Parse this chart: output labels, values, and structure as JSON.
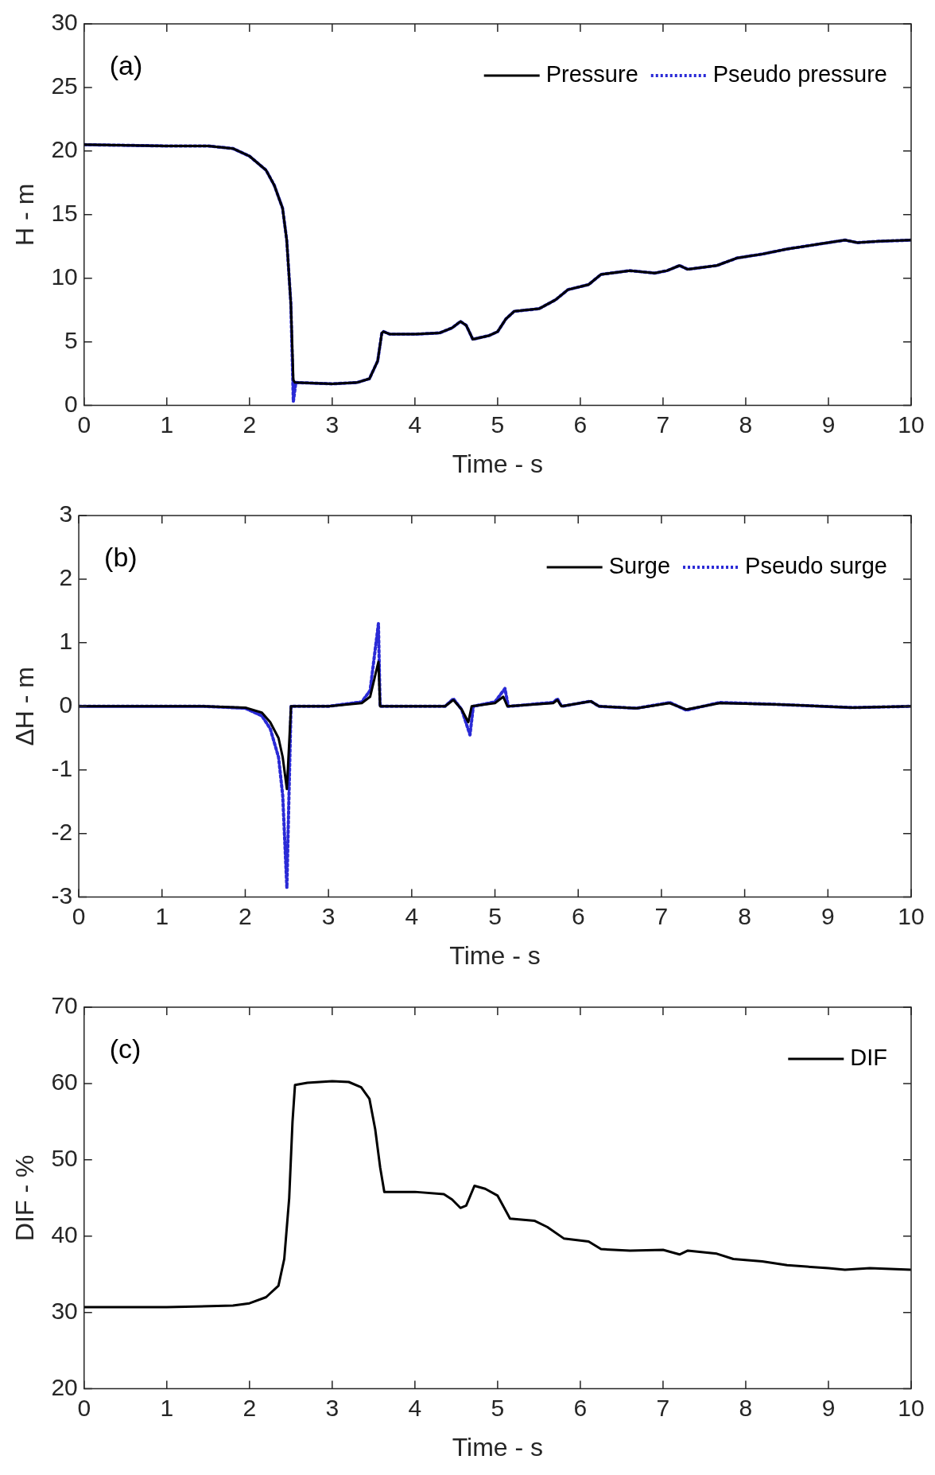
{
  "chart_data": [
    {
      "type": "line",
      "xlabel": "Time - s",
      "ylabel": "H - m",
      "annotations": [
        "(a)"
      ],
      "legend": "top right",
      "xlim": [
        0,
        10
      ],
      "xticks": [
        0,
        1,
        2,
        3,
        4,
        5,
        6,
        7,
        8,
        9,
        10
      ],
      "ylim": [
        0,
        30
      ],
      "yticks": [
        0,
        5,
        10,
        15,
        20,
        25,
        30
      ],
      "marker": "none",
      "series": [
        {
          "name": "Pressure",
          "color": "#000000",
          "line_style": "solid",
          "x": [
            0,
            1,
            1.5,
            1.8,
            2,
            2.2,
            2.3,
            2.4,
            2.45,
            2.5,
            2.53,
            2.55,
            3,
            3.3,
            3.45,
            3.55,
            3.6,
            3.62,
            3.7,
            4,
            4.3,
            4.45,
            4.55,
            4.62,
            4.7,
            4.9,
            5,
            5.1,
            5.2,
            5.5,
            5.7,
            5.85,
            6.1,
            6.25,
            6.6,
            6.9,
            7.05,
            7.2,
            7.3,
            7.65,
            7.9,
            8.2,
            8.5,
            8.9,
            9.2,
            9.35,
            9.6,
            10
          ],
          "values": [
            20.5,
            20.4,
            20.4,
            20.2,
            19.6,
            18.5,
            17.3,
            15.5,
            13,
            8,
            2,
            1.8,
            1.7,
            1.8,
            2.1,
            3.5,
            5.7,
            5.8,
            5.6,
            5.6,
            5.7,
            6.1,
            6.6,
            6.3,
            5.2,
            5.5,
            5.8,
            6.8,
            7.4,
            7.6,
            8.3,
            9.1,
            9.5,
            10.3,
            10.6,
            10.4,
            10.6,
            11,
            10.7,
            11,
            11.6,
            11.9,
            12.3,
            12.7,
            13,
            12.8,
            12.9,
            13
          ]
        },
        {
          "name": "Pseudo pressure",
          "color": "#2a2ad6",
          "line_style": "dotted",
          "x": [
            0,
            1,
            1.5,
            1.8,
            2,
            2.2,
            2.3,
            2.4,
            2.45,
            2.5,
            2.53,
            2.56,
            3,
            3.3,
            3.45,
            3.55,
            3.6,
            3.62,
            3.7,
            4,
            4.3,
            4.45,
            4.55,
            4.62,
            4.7,
            4.9,
            5,
            5.1,
            5.2,
            5.5,
            5.7,
            5.85,
            6.1,
            6.25,
            6.6,
            6.9,
            7.05,
            7.2,
            7.3,
            7.65,
            7.9,
            8.2,
            8.5,
            8.9,
            9.2,
            9.35,
            9.6,
            10
          ],
          "values": [
            20.5,
            20.4,
            20.4,
            20.2,
            19.6,
            18.5,
            17.3,
            15.5,
            13,
            8,
            0.3,
            1.8,
            1.7,
            1.8,
            2.1,
            3.5,
            5.7,
            5.8,
            5.6,
            5.6,
            5.7,
            6.1,
            6.6,
            6.3,
            5.2,
            5.5,
            5.8,
            6.8,
            7.4,
            7.6,
            8.3,
            9.1,
            9.5,
            10.3,
            10.6,
            10.4,
            10.6,
            11,
            10.7,
            11,
            11.6,
            11.9,
            12.3,
            12.7,
            13,
            12.8,
            12.9,
            13
          ]
        }
      ]
    },
    {
      "type": "line",
      "xlabel": "Time - s",
      "ylabel": "ΔH - m",
      "annotations": [
        "(b)"
      ],
      "legend": "top right",
      "xlim": [
        0,
        10
      ],
      "xticks": [
        0,
        1,
        2,
        3,
        4,
        5,
        6,
        7,
        8,
        9,
        10
      ],
      "ylim": [
        -3,
        3
      ],
      "yticks": [
        -3,
        -2,
        -1,
        0,
        1,
        2,
        3
      ],
      "marker": "none",
      "series": [
        {
          "name": "Surge",
          "color": "#000000",
          "line_style": "solid",
          "x": [
            0,
            1.5,
            2,
            2.2,
            2.3,
            2.4,
            2.45,
            2.5,
            2.55,
            3,
            3.4,
            3.5,
            3.6,
            3.62,
            4.4,
            4.5,
            4.6,
            4.68,
            4.72,
            5,
            5.1,
            5.15,
            5.7,
            5.75,
            5.8,
            6.15,
            6.25,
            6.7,
            7.1,
            7.3,
            7.7,
            8.4,
            9.3,
            10
          ],
          "values": [
            0,
            0,
            -0.02,
            -0.1,
            -0.25,
            -0.5,
            -0.8,
            -1.3,
            0,
            0,
            0.05,
            0.15,
            0.7,
            0,
            0,
            0.1,
            -0.05,
            -0.25,
            0,
            0.05,
            0.15,
            0,
            0.05,
            0.1,
            0,
            0.08,
            0,
            -0.03,
            0.05,
            -0.05,
            0.05,
            0.03,
            -0.02,
            0
          ]
        },
        {
          "name": "Pseudo surge",
          "color": "#2a2ad6",
          "line_style": "dotted",
          "x": [
            0,
            1.5,
            2,
            2.2,
            2.3,
            2.4,
            2.45,
            2.5,
            2.55,
            3,
            3.4,
            3.5,
            3.6,
            3.62,
            4.4,
            4.5,
            4.6,
            4.7,
            4.74,
            5,
            5.12,
            5.16,
            5.7,
            5.75,
            5.8,
            6.15,
            6.25,
            6.7,
            7.1,
            7.3,
            7.7,
            8.4,
            9.3,
            10
          ],
          "values": [
            0,
            0,
            -0.03,
            -0.15,
            -0.35,
            -0.8,
            -1.4,
            -2.85,
            0,
            0,
            0.07,
            0.25,
            1.3,
            0,
            0,
            0.12,
            -0.05,
            -0.45,
            0,
            0.07,
            0.28,
            0,
            0.06,
            0.12,
            0,
            0.08,
            0,
            -0.03,
            0.06,
            -0.06,
            0.06,
            0.03,
            -0.02,
            0
          ]
        }
      ]
    },
    {
      "type": "line",
      "xlabel": "Time - s",
      "ylabel": "DIF - %",
      "annotations": [
        "(c)"
      ],
      "legend": "top right",
      "xlim": [
        0,
        10
      ],
      "xticks": [
        0,
        1,
        2,
        3,
        4,
        5,
        6,
        7,
        8,
        9,
        10
      ],
      "ylim": [
        20,
        70
      ],
      "yticks": [
        20,
        30,
        40,
        50,
        60,
        70
      ],
      "marker": "none",
      "series": [
        {
          "name": "DIF",
          "color": "#000000",
          "line_style": "solid",
          "x": [
            0,
            1,
            1.8,
            2,
            2.2,
            2.35,
            2.42,
            2.48,
            2.52,
            2.55,
            2.7,
            3,
            3.2,
            3.35,
            3.45,
            3.52,
            3.58,
            3.63,
            4,
            4.35,
            4.45,
            4.55,
            4.62,
            4.72,
            4.85,
            5,
            5.15,
            5.45,
            5.6,
            5.8,
            6.1,
            6.25,
            6.6,
            7,
            7.2,
            7.3,
            7.65,
            7.85,
            8.2,
            8.5,
            9,
            9.2,
            9.5,
            10
          ],
          "values": [
            30.7,
            30.7,
            30.9,
            31.2,
            32,
            33.5,
            37,
            45,
            55,
            59.8,
            60.1,
            60.3,
            60.2,
            59.5,
            58,
            54,
            49,
            45.8,
            45.8,
            45.5,
            44.8,
            43.7,
            44,
            46.6,
            46.2,
            45.3,
            42.3,
            42,
            41.2,
            39.7,
            39.3,
            38.3,
            38.1,
            38.2,
            37.6,
            38.1,
            37.7,
            37,
            36.7,
            36.2,
            35.8,
            35.6,
            35.8,
            35.6
          ]
        }
      ]
    }
  ]
}
